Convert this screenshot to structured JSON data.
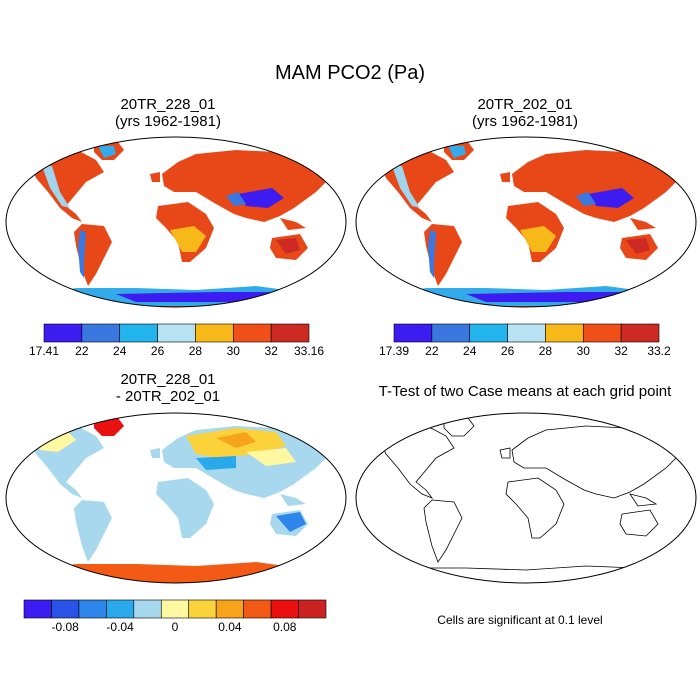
{
  "page": {
    "main_title": "MAM PCO2 (Pa)",
    "note": "Cells are significant at 0.1 level"
  },
  "panels": [
    {
      "title_line1": "20TR_228_01",
      "title_line2": "(yrs 1962-1981)"
    },
    {
      "title_line1": "20TR_202_01",
      "title_line2": "(yrs 1962-1981)"
    },
    {
      "title_line1": "20TR_228_01",
      "title_line2": "- 20TR_202_01"
    },
    {
      "title_line1": "T-Test of two Case means at each grid point"
    }
  ],
  "chart_data": [
    {
      "type": "heatmap",
      "title": "20TR_228_01 (yrs 1962-1981)",
      "colorbar": {
        "colors": [
          "#3c1cf0",
          "#3a78e0",
          "#22b4ec",
          "#b6e2f2",
          "#f7b81a",
          "#f05018",
          "#cc2a22"
        ],
        "tick_labels": [
          "17.41",
          "22",
          "24",
          "26",
          "28",
          "30",
          "32",
          "33.16"
        ],
        "range": [
          17.41,
          33.16
        ]
      },
      "dominant_level": "30-32 over most land",
      "low_regions": [
        "Tibetan Plateau",
        "Greenland",
        "Antarctica",
        "Andes",
        "Rocky Mountains"
      ]
    },
    {
      "type": "heatmap",
      "title": "20TR_202_01 (yrs 1962-1981)",
      "colorbar": {
        "colors": [
          "#3c1cf0",
          "#3a78e0",
          "#22b4ec",
          "#b6e2f2",
          "#f7b81a",
          "#f05018",
          "#cc2a22"
        ],
        "tick_labels": [
          "17.39",
          "22",
          "24",
          "26",
          "28",
          "30",
          "32",
          "33.2"
        ],
        "range": [
          17.39,
          33.2
        ]
      },
      "dominant_level": "30-32 over most land",
      "low_regions": [
        "Tibetan Plateau",
        "Greenland",
        "Antarctica",
        "Andes",
        "Rocky Mountains"
      ]
    },
    {
      "type": "heatmap",
      "title": "20TR_228_01 - 20TR_202_01",
      "colorbar": {
        "colors": [
          "#3c1cf0",
          "#2a52e6",
          "#2e86ea",
          "#2aa8ec",
          "#a8d8ee",
          "#fff8a0",
          "#fcd23a",
          "#f8a41a",
          "#f25a16",
          "#ea1010",
          "#cc2222"
        ],
        "tick_labels": [
          "-0.08",
          "-0.04",
          "0",
          "0.04",
          "0.08"
        ],
        "tick_values": [
          -0.08,
          -0.04,
          0,
          0.04,
          0.08
        ]
      },
      "positive_regions": [
        "Antarctica",
        "Greenland",
        "Northern Eurasia"
      ],
      "negative_regions": [
        "Tropics",
        "Southern Hemisphere land"
      ]
    },
    {
      "type": "map",
      "title": "T-Test of two Case means at each grid point",
      "significant_cells": 0,
      "note": "Cells are significant at 0.1 level"
    }
  ]
}
